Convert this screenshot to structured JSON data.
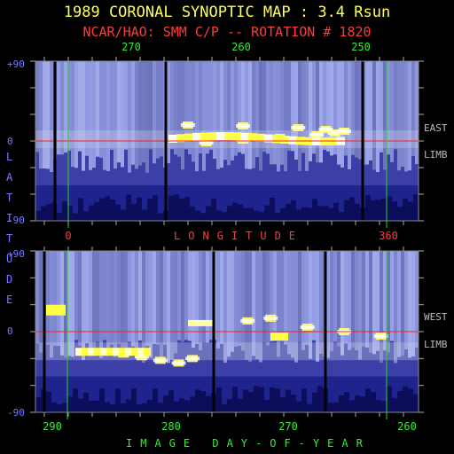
{
  "title": "1989 CORONAL SYNOPTIC MAP : 3.4 Rsun",
  "subtitle": "NCAR/HAO: SMM C/P -- ROTATION # 1820",
  "colors": {
    "title": "#ffff55",
    "subtitle": "#ff3b3b",
    "ticks": "#33ee33",
    "axis_labels": "#7777ff",
    "equator": "#ff2020",
    "marker": "#22dd22",
    "background": "#000000"
  },
  "chart_data": [
    {
      "type": "heatmap",
      "panel": "east-limb",
      "side_label": [
        "EAST",
        "LIMB"
      ],
      "ylim": [
        -90,
        90
      ],
      "y_ticks": [
        "+90",
        "0",
        "-90"
      ],
      "x_ticks": [
        "270",
        "260",
        "250"
      ],
      "x_axis_label": "LONGITUDE",
      "x_axis_marks": [
        "0",
        "360"
      ],
      "bright_band": [
        [
          -2,
          18
        ],
        [
          1,
          22
        ],
        [
          4,
          26
        ],
        [
          7,
          30
        ],
        [
          9,
          32
        ],
        [
          11,
          33
        ],
        [
          13,
          31
        ],
        [
          15,
          28
        ],
        [
          17,
          22
        ],
        [
          18,
          16
        ]
      ]
    },
    {
      "type": "heatmap",
      "panel": "west-limb",
      "side_label": [
        "WEST",
        "LIMB"
      ],
      "ylim": [
        -90,
        90
      ],
      "y_ticks": [
        "+90",
        "0",
        "-90"
      ],
      "x_ticks": [
        "290",
        "280",
        "270",
        "260"
      ],
      "x_axis_label": "IMAGE DAY-OF-YEAR",
      "bright_band": [
        [
          -25,
          18
        ],
        [
          -28,
          22
        ],
        [
          -32,
          26
        ],
        [
          -35,
          30
        ],
        [
          -30,
          33
        ],
        [
          12,
          45
        ],
        [
          15,
          50
        ],
        [
          5,
          58
        ],
        [
          0,
          66
        ],
        [
          -5,
          74
        ]
      ]
    }
  ],
  "y_axis_title": "LATITUDE"
}
